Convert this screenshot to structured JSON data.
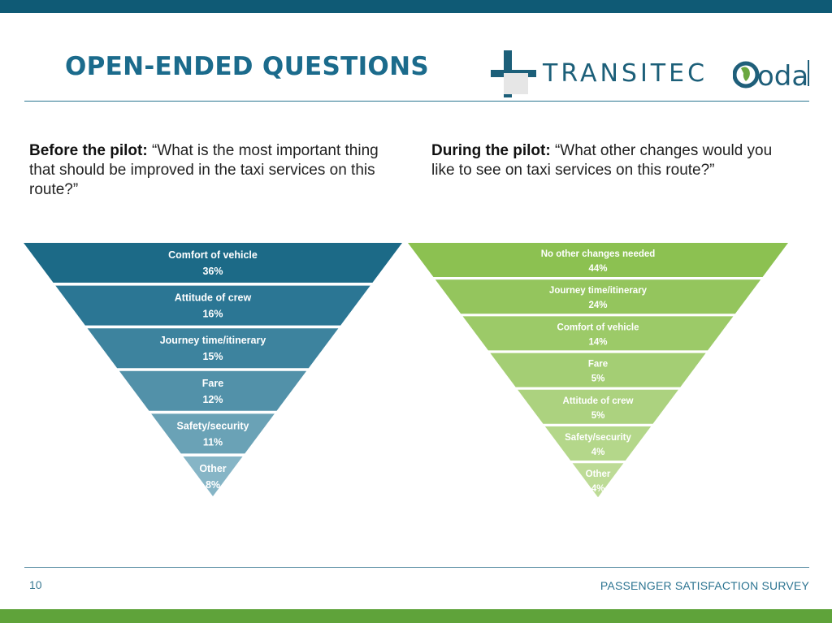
{
  "slide": {
    "title": "OPEN-ENDED QUESTIONS",
    "page_number": "10",
    "footer": "PASSENGER SATISFACTION SURVEY",
    "logos": {
      "transitec": "TRANSITEC",
      "oda": "oda"
    }
  },
  "questions": {
    "before": {
      "label": "Before the pilot:",
      "text": "“What is the most important thing that should be improved in the taxi services on this route?”"
    },
    "during": {
      "label": "During the pilot:",
      "text": "“What other changes would you like to see on taxi services on this route?”"
    }
  },
  "colors": {
    "accent_blue": "#1b6b8c",
    "accent_green": "#5fa33a"
  },
  "chart_data": [
    {
      "type": "funnel",
      "categories": [
        "Comfort of vehicle",
        "Attitude of crew",
        "Journey time/itinerary",
        "Fare",
        "Safety/security",
        "Other"
      ],
      "values": [
        36,
        16,
        15,
        12,
        11,
        8
      ],
      "value_labels": [
        "36%",
        "16%",
        "15%",
        "12%",
        "11%",
        "8%"
      ],
      "colors": [
        "#1c6a87",
        "#2b7694",
        "#3d839e",
        "#5291a9",
        "#6aa2b6",
        "#86b5c6"
      ]
    },
    {
      "type": "funnel",
      "categories": [
        "No other changes needed",
        "Journey time/itinerary",
        "Comfort of vehicle",
        "Fare",
        "Attitude of crew",
        "Safety/security",
        "Other"
      ],
      "values": [
        44,
        24,
        14,
        5,
        5,
        4,
        4
      ],
      "value_labels": [
        "44%",
        "24%",
        "14%",
        "5%",
        "5%",
        "4%",
        "4%"
      ],
      "colors": [
        "#8cc151",
        "#94c55d",
        "#9cca68",
        "#a4ce74",
        "#acd27f",
        "#b4d78a",
        "#bddb96"
      ]
    }
  ]
}
